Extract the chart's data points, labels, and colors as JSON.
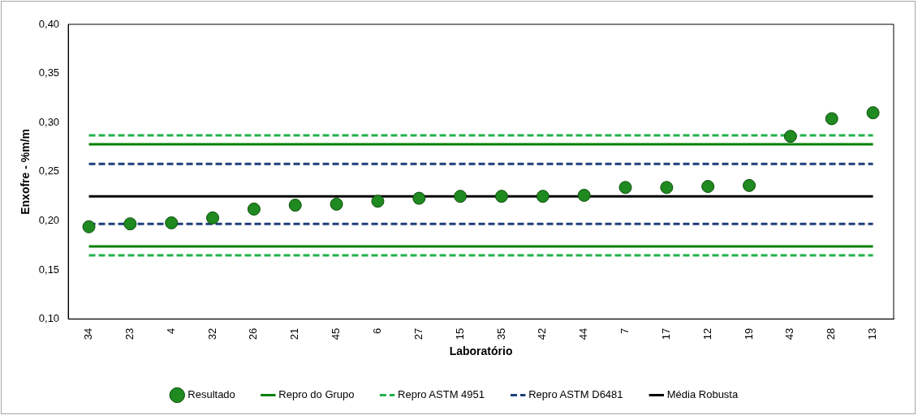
{
  "chart_data": {
    "type": "scatter",
    "xlabel": "Laboratório",
    "ylabel": "Enxofre - %m/m",
    "categories": [
      "34",
      "23",
      "4",
      "32",
      "26",
      "21",
      "45",
      "6",
      "27",
      "15",
      "35",
      "42",
      "44",
      "7",
      "17",
      "12",
      "19",
      "43",
      "28",
      "13"
    ],
    "series": [
      {
        "name": "Resultado",
        "color": "#1f8a1f",
        "marker": "circle",
        "values": [
          0.194,
          0.197,
          0.198,
          0.203,
          0.212,
          0.216,
          0.217,
          0.22,
          0.223,
          0.225,
          0.225,
          0.225,
          0.226,
          0.234,
          0.234,
          0.235,
          0.236,
          0.286,
          0.304,
          0.31
        ]
      },
      {
        "name": "Repro do Grupo",
        "type": "line",
        "color": "#008000",
        "line_style": "solid",
        "marker": "none",
        "values": [
          0.278,
          0.278,
          0.278,
          0.278,
          0.278,
          0.278,
          0.278,
          0.278,
          0.278,
          0.278,
          0.278,
          0.278,
          0.278,
          0.278,
          0.278,
          0.278,
          0.278,
          0.278,
          0.278,
          0.278
        ]
      },
      {
        "type": "line",
        "color": "#008000",
        "line_style": "solid",
        "marker": "none",
        "values": [
          0.174,
          0.174,
          0.174,
          0.174,
          0.174,
          0.174,
          0.174,
          0.174,
          0.174,
          0.174,
          0.174,
          0.174,
          0.174,
          0.174,
          0.174,
          0.174,
          0.174,
          0.174,
          0.174,
          0.174
        ]
      },
      {
        "name": "Repro ASTM 4951",
        "type": "line",
        "color": "#22b14c",
        "line_style": "dashed",
        "marker": "none",
        "values": [
          0.287,
          0.287,
          0.287,
          0.287,
          0.287,
          0.287,
          0.287,
          0.287,
          0.287,
          0.287,
          0.287,
          0.287,
          0.287,
          0.287,
          0.287,
          0.287,
          0.287,
          0.287,
          0.287,
          0.287
        ]
      },
      {
        "type": "line",
        "color": "#22b14c",
        "line_style": "dashed",
        "marker": "none",
        "values": [
          0.165,
          0.165,
          0.165,
          0.165,
          0.165,
          0.165,
          0.165,
          0.165,
          0.165,
          0.165,
          0.165,
          0.165,
          0.165,
          0.165,
          0.165,
          0.165,
          0.165,
          0.165,
          0.165,
          0.165
        ]
      },
      {
        "name": "Repro ASTM D6481",
        "type": "line",
        "color": "#1f3f7a",
        "line_style": "dashed",
        "marker": "none",
        "values": [
          0.258,
          0.258,
          0.258,
          0.258,
          0.258,
          0.258,
          0.258,
          0.258,
          0.258,
          0.258,
          0.258,
          0.258,
          0.258,
          0.258,
          0.258,
          0.258,
          0.258,
          0.258,
          0.258,
          0.258
        ]
      },
      {
        "type": "line",
        "color": "#1f3f7a",
        "line_style": "dashed",
        "marker": "none",
        "values": [
          0.197,
          0.197,
          0.197,
          0.197,
          0.197,
          0.197,
          0.197,
          0.197,
          0.197,
          0.197,
          0.197,
          0.197,
          0.197,
          0.197,
          0.197,
          0.197,
          0.197,
          0.197,
          0.197,
          0.197
        ]
      },
      {
        "name": "Média Robusta",
        "type": "line",
        "color": "#000000",
        "line_style": "solid",
        "marker": "none",
        "values": [
          0.225,
          0.225,
          0.225,
          0.225,
          0.225,
          0.225,
          0.225,
          0.225,
          0.225,
          0.225,
          0.225,
          0.225,
          0.225,
          0.225,
          0.225,
          0.225,
          0.225,
          0.225,
          0.225,
          0.225
        ]
      }
    ],
    "ylim": [
      0.1,
      0.4
    ],
    "yticks": [
      {
        "value": 0.1,
        "label": "0,10"
      },
      {
        "value": 0.15,
        "label": "0,15"
      },
      {
        "value": 0.2,
        "label": "0,20"
      },
      {
        "value": 0.25,
        "label": "0,25"
      },
      {
        "value": 0.3,
        "label": "0,30"
      },
      {
        "value": 0.35,
        "label": "0,35"
      },
      {
        "value": 0.4,
        "label": "0,40"
      }
    ],
    "grid": false,
    "legend": "bottom"
  }
}
